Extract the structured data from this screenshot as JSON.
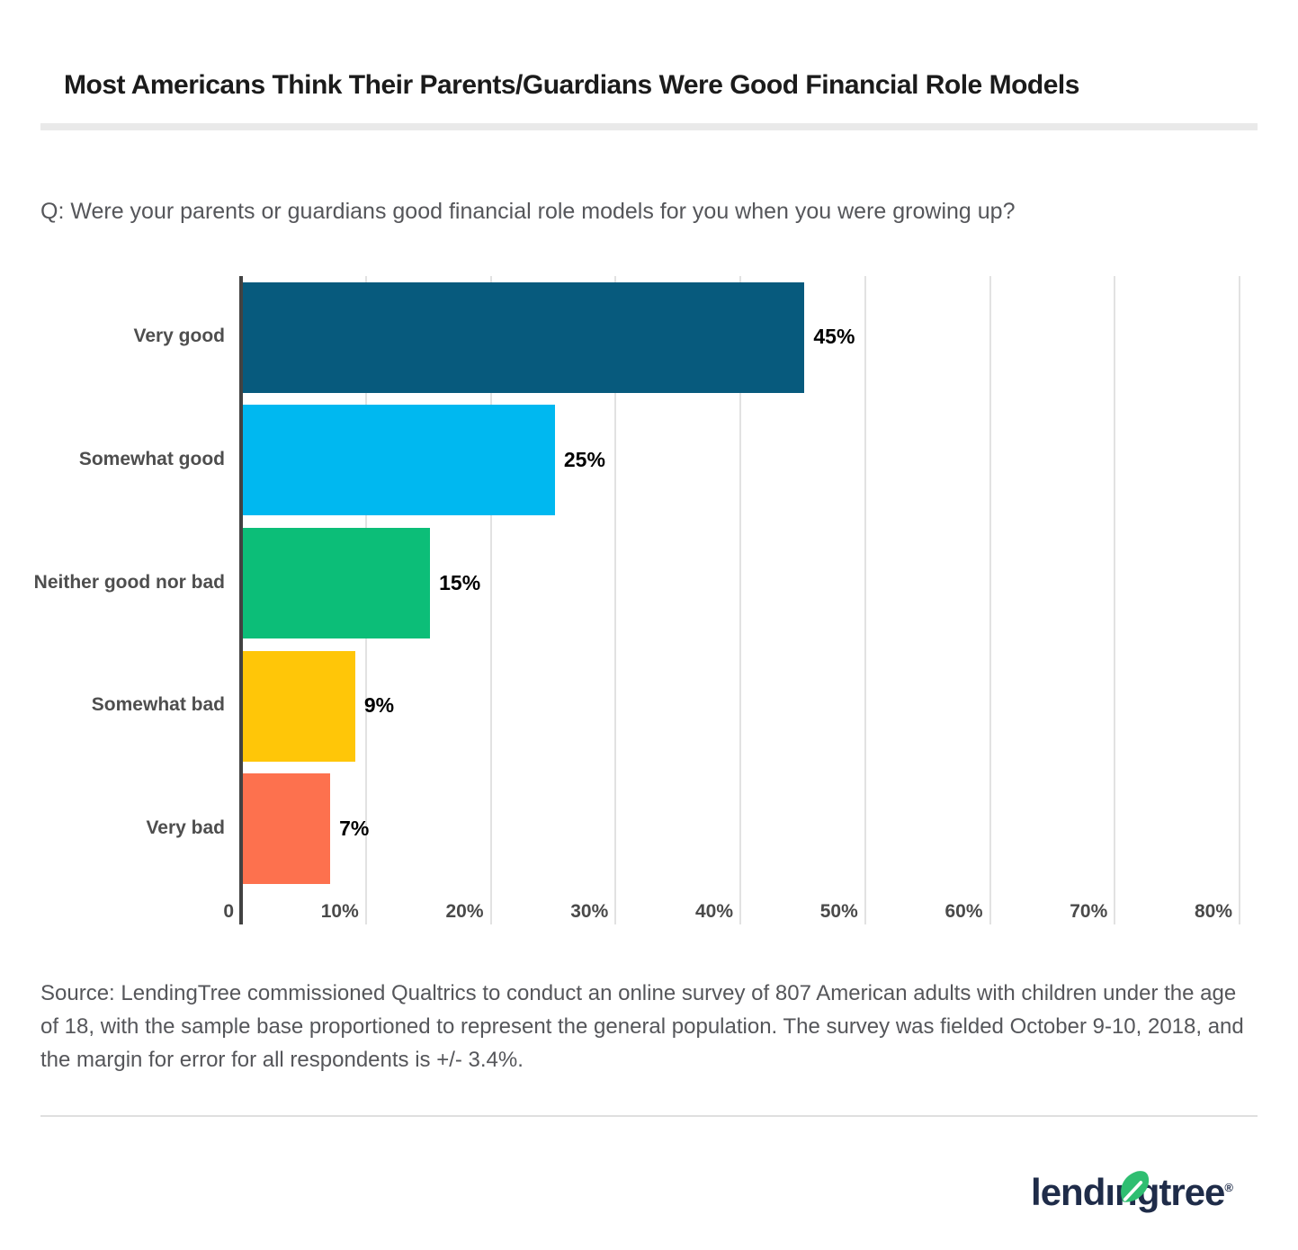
{
  "title": "Most Americans Think Their Parents/Guardians Were Good Financial Role Models",
  "question": "Q: Were your parents or guardians good financial role models for you when you were growing up?",
  "chart_data": {
    "type": "bar",
    "orientation": "horizontal",
    "categories": [
      "Very good",
      "Somewhat good",
      "Neither good nor bad",
      "Somewhat bad",
      "Very bad"
    ],
    "values": [
      45,
      25,
      15,
      9,
      7
    ],
    "value_labels": [
      "45%",
      "25%",
      "15%",
      "9%",
      "7%"
    ],
    "bar_colors": [
      "#075A7D",
      "#00B8F0",
      "#0CBE78",
      "#FFC608",
      "#FD714E"
    ],
    "x_ticks": [
      "0",
      "10%",
      "20%",
      "30%",
      "40%",
      "50%",
      "60%",
      "70%",
      "80%"
    ],
    "xlim": [
      0,
      80
    ],
    "xlabel": "",
    "ylabel": "",
    "grid": "vertical-only",
    "legend": "none",
    "axis_color": "#424242",
    "gridline_color": "#E2E2E2"
  },
  "source": {
    "text": "Source: LendingTree commissioned Qualtrics to conduct an online survey of 807 American adults with children under the age of 18, with the sample base proportioned to represent the general population. The survey was fielded October 9-10, 2018, and the margin for error for all respondents is +/- 3.4%."
  },
  "logo": {
    "brand": "lendingtree",
    "wordmark_pre": "lend",
    "wordmark_i": "ı",
    "wordmark_post": "ngtree",
    "registered": "®",
    "navy": "#1F2C49",
    "leaf_green": "#2FBE71"
  }
}
